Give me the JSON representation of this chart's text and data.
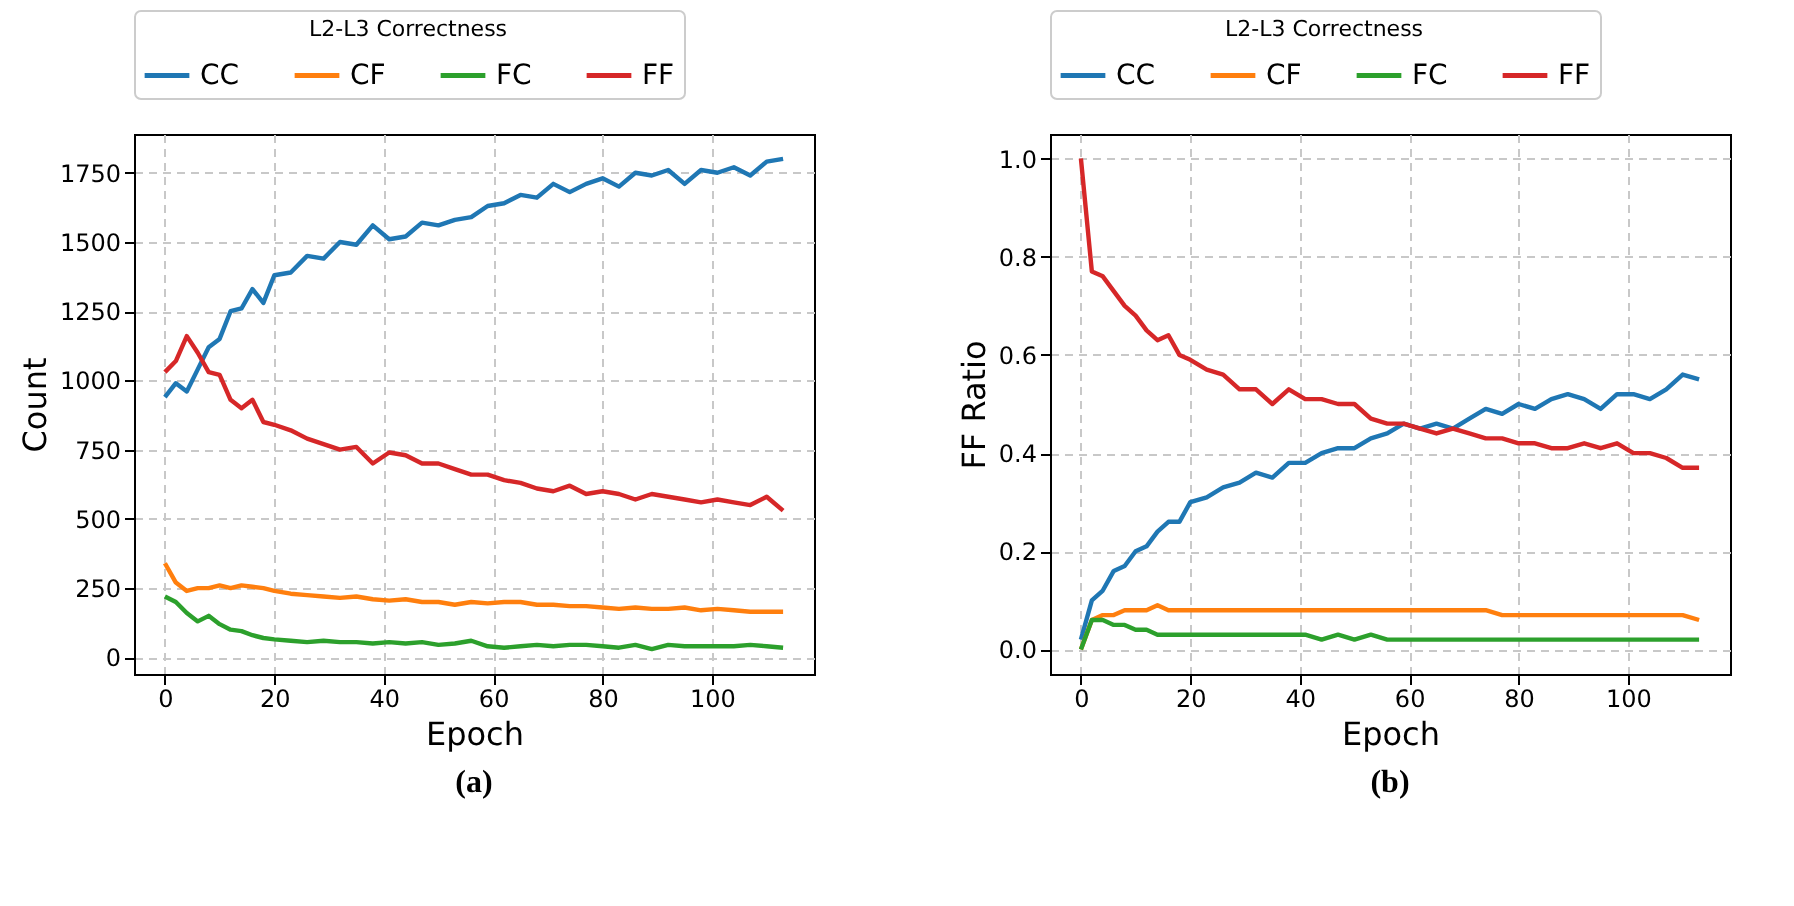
{
  "chart_data": [
    {
      "type": "line",
      "title": "(a)",
      "xlabel": "Epoch",
      "ylabel": "Count",
      "legend_title": "L2-L3 Correctness",
      "legend": "top",
      "grid": true,
      "line_style": "solid",
      "x": [
        0,
        2,
        4,
        6,
        8,
        10,
        12,
        14,
        16,
        18,
        20,
        23,
        26,
        29,
        32,
        35,
        38,
        41,
        44,
        47,
        50,
        53,
        56,
        59,
        62,
        65,
        68,
        71,
        74,
        77,
        80,
        83,
        86,
        89,
        92,
        95,
        98,
        101,
        104,
        107,
        110,
        113
      ],
      "xlim": [
        -5.65,
        118.65
      ],
      "xticks": [
        0,
        20,
        40,
        60,
        80,
        100
      ],
      "ylim": [
        -60,
        1890
      ],
      "yticks": [
        0,
        250,
        500,
        750,
        1000,
        1250,
        1500,
        1750
      ],
      "series": [
        {
          "name": "CC",
          "color": "#1f77b4",
          "values": [
            940,
            990,
            960,
            1040,
            1120,
            1150,
            1250,
            1260,
            1330,
            1280,
            1380,
            1390,
            1450,
            1440,
            1500,
            1490,
            1560,
            1510,
            1520,
            1570,
            1560,
            1580,
            1590,
            1630,
            1640,
            1670,
            1660,
            1710,
            1680,
            1710,
            1730,
            1700,
            1750,
            1740,
            1760,
            1710,
            1760,
            1750,
            1770,
            1740,
            1790,
            1800
          ]
        },
        {
          "name": "CF",
          "color": "#ff7f0e",
          "values": [
            340,
            270,
            240,
            250,
            250,
            260,
            250,
            260,
            255,
            250,
            240,
            230,
            225,
            220,
            215,
            220,
            210,
            205,
            210,
            200,
            200,
            190,
            200,
            195,
            200,
            200,
            190,
            190,
            185,
            185,
            180,
            175,
            180,
            175,
            175,
            180,
            170,
            175,
            170,
            165,
            165,
            165
          ]
        },
        {
          "name": "FC",
          "color": "#2ca02c",
          "values": [
            220,
            200,
            160,
            130,
            150,
            120,
            100,
            95,
            80,
            70,
            65,
            60,
            55,
            60,
            55,
            55,
            50,
            55,
            50,
            55,
            45,
            50,
            60,
            40,
            35,
            40,
            45,
            40,
            45,
            45,
            40,
            35,
            45,
            30,
            45,
            40,
            40,
            40,
            40,
            45,
            40,
            35
          ]
        },
        {
          "name": "FF",
          "color": "#d62728",
          "values": [
            1030,
            1070,
            1160,
            1100,
            1030,
            1020,
            930,
            900,
            930,
            850,
            840,
            820,
            790,
            770,
            750,
            760,
            700,
            740,
            730,
            700,
            700,
            680,
            660,
            660,
            640,
            630,
            610,
            600,
            620,
            590,
            600,
            590,
            570,
            590,
            580,
            570,
            560,
            570,
            560,
            550,
            580,
            530
          ]
        }
      ]
    },
    {
      "type": "line",
      "title": "(b)",
      "xlabel": "Epoch",
      "ylabel": "FF Ratio",
      "legend_title": "L2-L3 Correctness",
      "legend": "top",
      "grid": true,
      "line_style": "solid",
      "x": [
        0,
        2,
        4,
        6,
        8,
        10,
        12,
        14,
        16,
        18,
        20,
        23,
        26,
        29,
        32,
        35,
        38,
        41,
        44,
        47,
        50,
        53,
        56,
        59,
        62,
        65,
        68,
        71,
        74,
        77,
        80,
        83,
        86,
        89,
        92,
        95,
        98,
        101,
        104,
        107,
        110,
        113
      ],
      "xlim": [
        -5.65,
        118.65
      ],
      "xticks": [
        0,
        20,
        40,
        60,
        80,
        100
      ],
      "ylim": [
        -0.05,
        1.05
      ],
      "yticks": [
        {
          "value": 0,
          "label": "0.0"
        },
        0.2,
        0.4,
        0.6,
        0.8,
        {
          "value": 1,
          "label": "1.0"
        }
      ],
      "series": [
        {
          "name": "CC",
          "color": "#1f77b4",
          "values": [
            0.02,
            0.1,
            0.12,
            0.16,
            0.17,
            0.2,
            0.21,
            0.24,
            0.26,
            0.26,
            0.3,
            0.31,
            0.33,
            0.34,
            0.36,
            0.35,
            0.38,
            0.38,
            0.4,
            0.41,
            0.41,
            0.43,
            0.44,
            0.46,
            0.45,
            0.46,
            0.45,
            0.47,
            0.49,
            0.48,
            0.5,
            0.49,
            0.51,
            0.52,
            0.51,
            0.49,
            0.52,
            0.52,
            0.51,
            0.53,
            0.56,
            0.55
          ]
        },
        {
          "name": "CF",
          "color": "#ff7f0e",
          "values": [
            0.0,
            0.06,
            0.07,
            0.07,
            0.08,
            0.08,
            0.08,
            0.09,
            0.08,
            0.08,
            0.08,
            0.08,
            0.08,
            0.08,
            0.08,
            0.08,
            0.08,
            0.08,
            0.08,
            0.08,
            0.08,
            0.08,
            0.08,
            0.08,
            0.08,
            0.08,
            0.08,
            0.08,
            0.08,
            0.07,
            0.07,
            0.07,
            0.07,
            0.07,
            0.07,
            0.07,
            0.07,
            0.07,
            0.07,
            0.07,
            0.07,
            0.06
          ]
        },
        {
          "name": "FC",
          "color": "#2ca02c",
          "values": [
            0.0,
            0.06,
            0.06,
            0.05,
            0.05,
            0.04,
            0.04,
            0.03,
            0.03,
            0.03,
            0.03,
            0.03,
            0.03,
            0.03,
            0.03,
            0.03,
            0.03,
            0.03,
            0.02,
            0.03,
            0.02,
            0.03,
            0.02,
            0.02,
            0.02,
            0.02,
            0.02,
            0.02,
            0.02,
            0.02,
            0.02,
            0.02,
            0.02,
            0.02,
            0.02,
            0.02,
            0.02,
            0.02,
            0.02,
            0.02,
            0.02,
            0.02
          ]
        },
        {
          "name": "FF",
          "color": "#d62728",
          "values": [
            1.0,
            0.77,
            0.76,
            0.73,
            0.7,
            0.68,
            0.65,
            0.63,
            0.64,
            0.6,
            0.59,
            0.57,
            0.56,
            0.53,
            0.53,
            0.5,
            0.53,
            0.51,
            0.51,
            0.5,
            0.5,
            0.47,
            0.46,
            0.46,
            0.45,
            0.44,
            0.45,
            0.44,
            0.43,
            0.43,
            0.42,
            0.42,
            0.41,
            0.41,
            0.42,
            0.41,
            0.42,
            0.4,
            0.4,
            0.39,
            0.37,
            0.37
          ]
        }
      ]
    }
  ]
}
